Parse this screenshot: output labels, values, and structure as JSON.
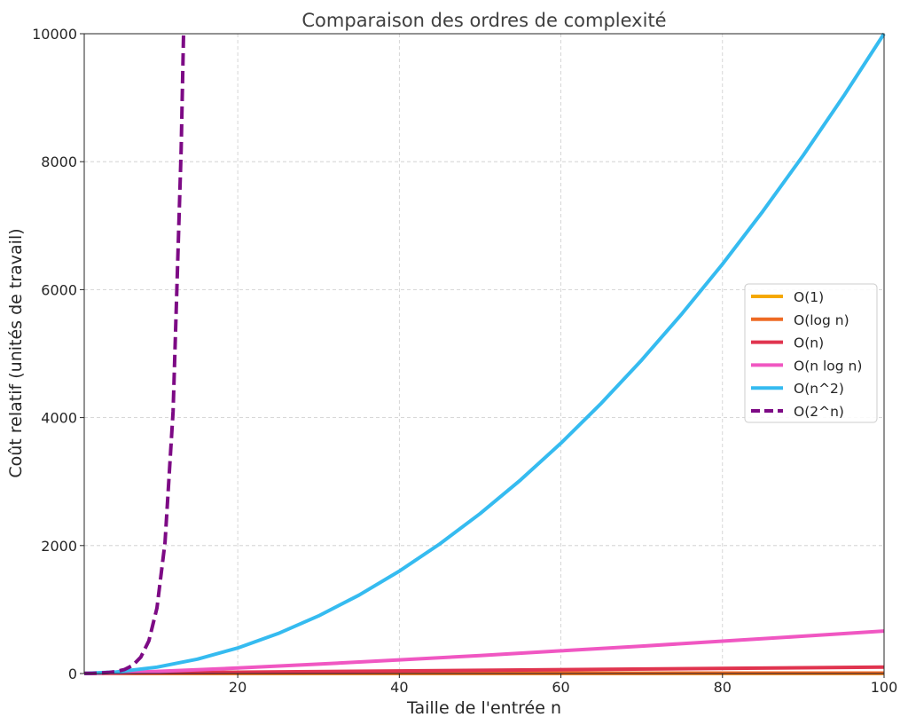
{
  "chart_data": {
    "type": "line",
    "title": "Comparaison des ordres de complexité",
    "xlabel": "Taille de l'entrée n",
    "ylabel": "Coût relatif (unités de travail)",
    "xlim": [
      1,
      100
    ],
    "ylim": [
      0,
      10000
    ],
    "xticks": [
      20,
      40,
      60,
      80,
      100
    ],
    "yticks": [
      0,
      2000,
      4000,
      6000,
      8000,
      10000
    ],
    "grid": true,
    "legend_position": "center-right",
    "series": [
      {
        "name": "O(1)",
        "color": "#f5a800",
        "dashed": false,
        "x": [
          1,
          100
        ],
        "y": [
          1,
          1
        ]
      },
      {
        "name": "O(log n)",
        "color": "#ee6a24",
        "dashed": false,
        "x": [
          1,
          2,
          5,
          10,
          20,
          30,
          40,
          50,
          60,
          70,
          80,
          90,
          100
        ],
        "y": [
          0,
          1,
          2.32,
          3.32,
          4.32,
          4.91,
          5.32,
          5.64,
          5.91,
          6.13,
          6.32,
          6.49,
          6.64
        ]
      },
      {
        "name": "O(n)",
        "color": "#e0344f",
        "dashed": false,
        "x": [
          1,
          100
        ],
        "y": [
          1,
          100
        ]
      },
      {
        "name": "O(n log n)",
        "color": "#f057c2",
        "dashed": false,
        "x": [
          1,
          2,
          5,
          10,
          20,
          30,
          40,
          50,
          60,
          70,
          80,
          90,
          100
        ],
        "y": [
          0,
          2,
          11.6,
          33.2,
          86.4,
          147.2,
          212.9,
          282.2,
          354.4,
          429,
          505.8,
          584.3,
          664.4
        ]
      },
      {
        "name": "O(n^2)",
        "color": "#35bbf0",
        "dashed": false,
        "x": [
          1,
          5,
          10,
          15,
          20,
          25,
          30,
          35,
          40,
          45,
          50,
          55,
          60,
          65,
          70,
          75,
          80,
          85,
          90,
          95,
          100
        ],
        "y": [
          1,
          25,
          100,
          225,
          400,
          625,
          900,
          1225,
          1600,
          2025,
          2500,
          3025,
          3600,
          4225,
          4900,
          5625,
          6400,
          7225,
          8100,
          9025,
          10000
        ]
      },
      {
        "name": "O(2^n)",
        "color": "#7d0a85",
        "dashed": true,
        "x": [
          1,
          2,
          3,
          4,
          5,
          6,
          7,
          8,
          9,
          10,
          11,
          12,
          13,
          13.29
        ],
        "y": [
          2,
          4,
          8,
          16,
          32,
          64,
          128,
          256,
          512,
          1024,
          2048,
          4096,
          8192,
          10000
        ]
      }
    ]
  }
}
